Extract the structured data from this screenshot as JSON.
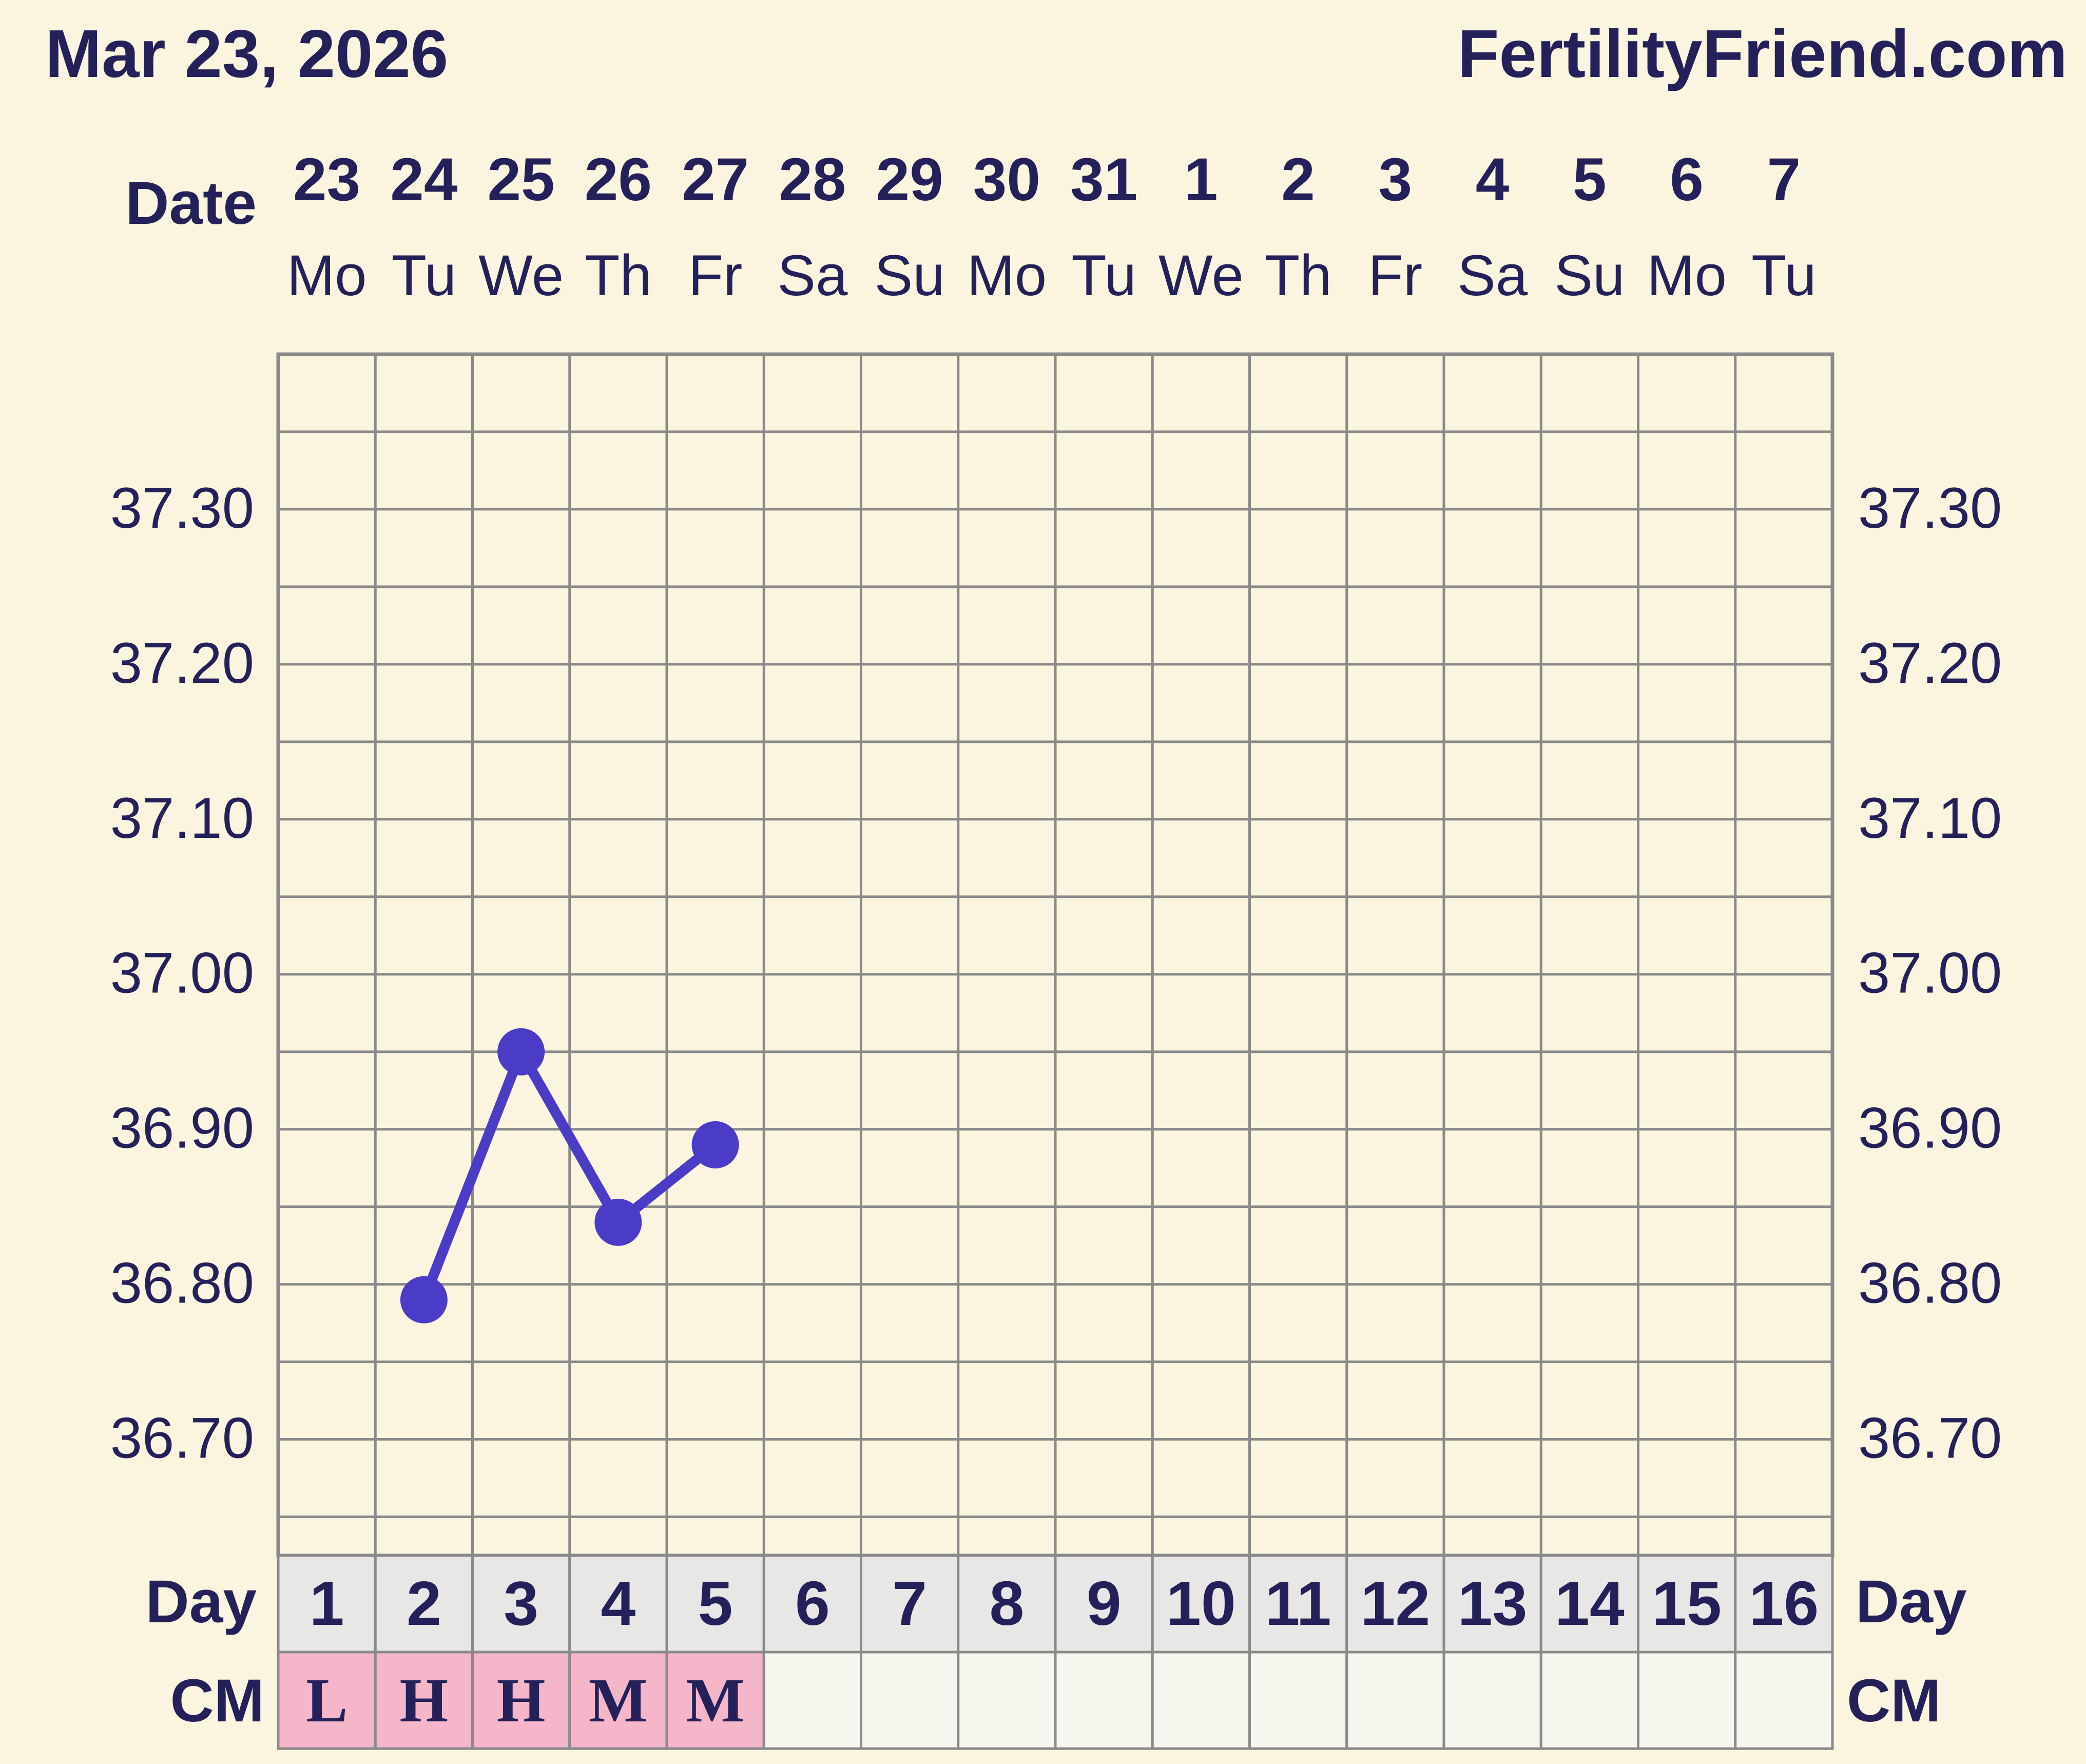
{
  "header": {
    "date_title": "Mar 23, 2026",
    "site_name": "FertilityFriend.com"
  },
  "colors": {
    "background": "#fbf5df",
    "text": "#24215a",
    "grid": "#8a8a8a",
    "series": "#4b3cc8",
    "day_cell": "#e8e7e5",
    "cm_filled": "#f4b6c8",
    "cm_empty": "#f7f6ee"
  },
  "chart_data": {
    "type": "line",
    "title": "",
    "xlabel": "",
    "ylabel": "",
    "row_labels": {
      "date": "Date",
      "day": "Day",
      "cm": "CM"
    },
    "x": [
      {
        "date": "23",
        "weekday": "Mo",
        "cycle_day": "1",
        "cm": "L"
      },
      {
        "date": "24",
        "weekday": "Tu",
        "cycle_day": "2",
        "cm": "H"
      },
      {
        "date": "25",
        "weekday": "We",
        "cycle_day": "3",
        "cm": "H"
      },
      {
        "date": "26",
        "weekday": "Th",
        "cycle_day": "4",
        "cm": "M"
      },
      {
        "date": "27",
        "weekday": "Fr",
        "cycle_day": "5",
        "cm": "M"
      },
      {
        "date": "28",
        "weekday": "Sa",
        "cycle_day": "6",
        "cm": ""
      },
      {
        "date": "29",
        "weekday": "Su",
        "cycle_day": "7",
        "cm": ""
      },
      {
        "date": "30",
        "weekday": "Mo",
        "cycle_day": "8",
        "cm": ""
      },
      {
        "date": "31",
        "weekday": "Tu",
        "cycle_day": "9",
        "cm": ""
      },
      {
        "date": "1",
        "weekday": "We",
        "cycle_day": "10",
        "cm": ""
      },
      {
        "date": "2",
        "weekday": "Th",
        "cycle_day": "11",
        "cm": ""
      },
      {
        "date": "3",
        "weekday": "Fr",
        "cycle_day": "12",
        "cm": ""
      },
      {
        "date": "4",
        "weekday": "Sa",
        "cycle_day": "13",
        "cm": ""
      },
      {
        "date": "5",
        "weekday": "Su",
        "cycle_day": "14",
        "cm": ""
      },
      {
        "date": "6",
        "weekday": "Mo",
        "cycle_day": "15",
        "cm": ""
      },
      {
        "date": "7",
        "weekday": "Tu",
        "cycle_day": "16",
        "cm": ""
      }
    ],
    "series": [
      {
        "values": [
          null,
          36.79,
          36.95,
          36.84,
          36.89,
          null,
          null,
          null,
          null,
          null,
          null,
          null,
          null,
          null,
          null,
          null
        ]
      }
    ],
    "y_ticks": [
      "37.30",
      "37.20",
      "37.10",
      "37.00",
      "36.90",
      "36.80",
      "36.70"
    ],
    "ylim": [
      36.625,
      37.4
    ],
    "grid": true
  }
}
